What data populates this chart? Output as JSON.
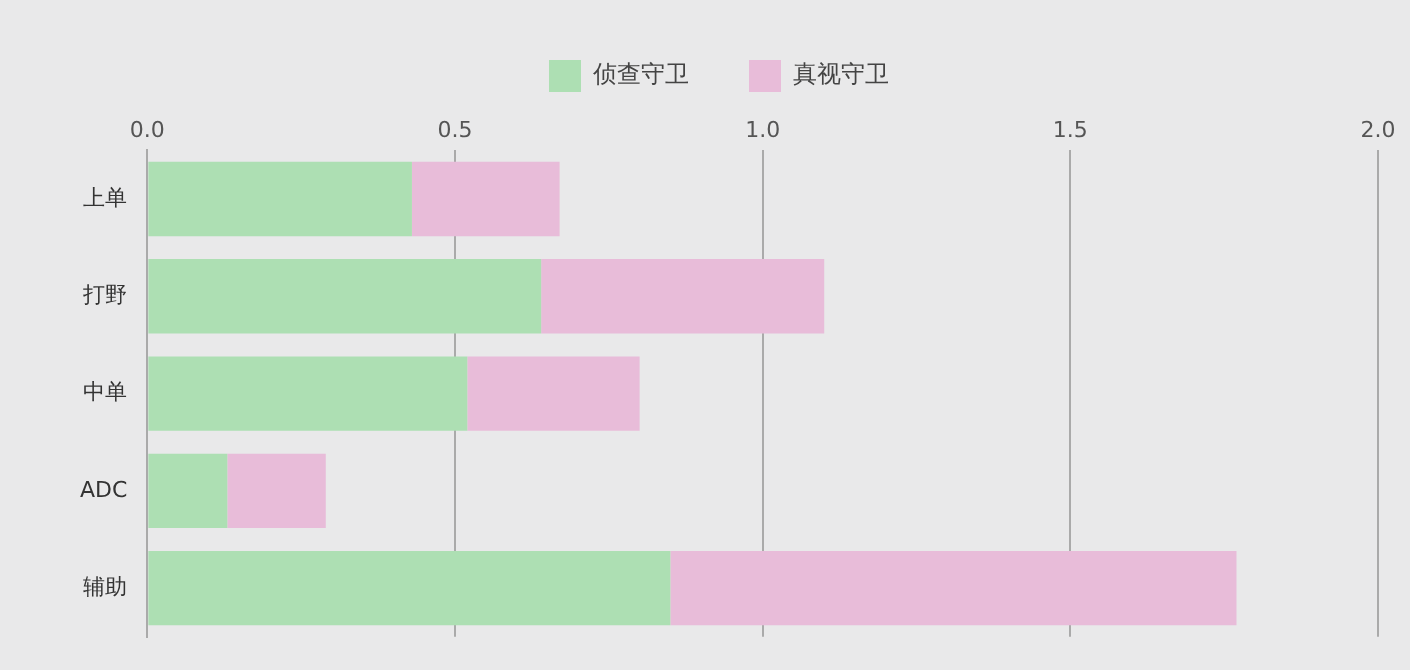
{
  "chart_data": {
    "type": "bar",
    "orientation": "horizontal",
    "stacked": true,
    "categories": [
      "上单",
      "打野",
      "中单",
      "ADC",
      "辅助"
    ],
    "series": [
      {
        "name": "侦查守卫",
        "color": "#addfb3",
        "values": [
          0.43,
          0.64,
          0.52,
          0.13,
          0.85
        ]
      },
      {
        "name": "真视守卫",
        "color": "#e8bcd9",
        "values": [
          0.24,
          0.46,
          0.28,
          0.16,
          0.92
        ]
      }
    ],
    "xlim": [
      0,
      2
    ],
    "xticks": [
      {
        "value": 0,
        "label": "0.0"
      },
      {
        "value": 0.5,
        "label": "0.5"
      },
      {
        "value": 1,
        "label": "1.0"
      },
      {
        "value": 1.5,
        "label": "1.5"
      },
      {
        "value": 2,
        "label": "2.0"
      }
    ],
    "grid": "x",
    "legend": "top"
  }
}
